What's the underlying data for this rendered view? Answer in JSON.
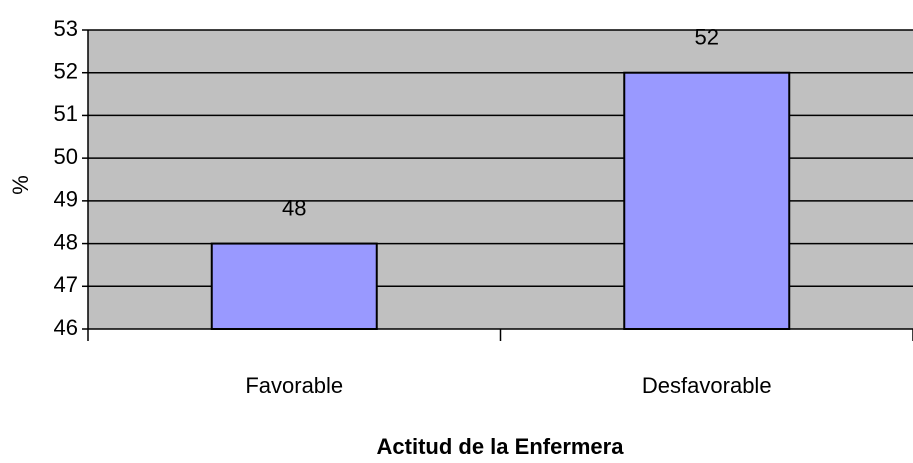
{
  "chart_data": {
    "type": "bar",
    "categories": [
      "Favorable",
      "Desfavorable"
    ],
    "values": [
      48,
      52
    ],
    "color": "#9999ff",
    "background": "#c0c0c0",
    "ylim": [
      46,
      53
    ],
    "yticks": [
      46,
      47,
      48,
      49,
      50,
      51,
      52,
      53
    ],
    "grid": true,
    "ylabel": "%",
    "xlabel": "Actitud de la Enfermera"
  }
}
